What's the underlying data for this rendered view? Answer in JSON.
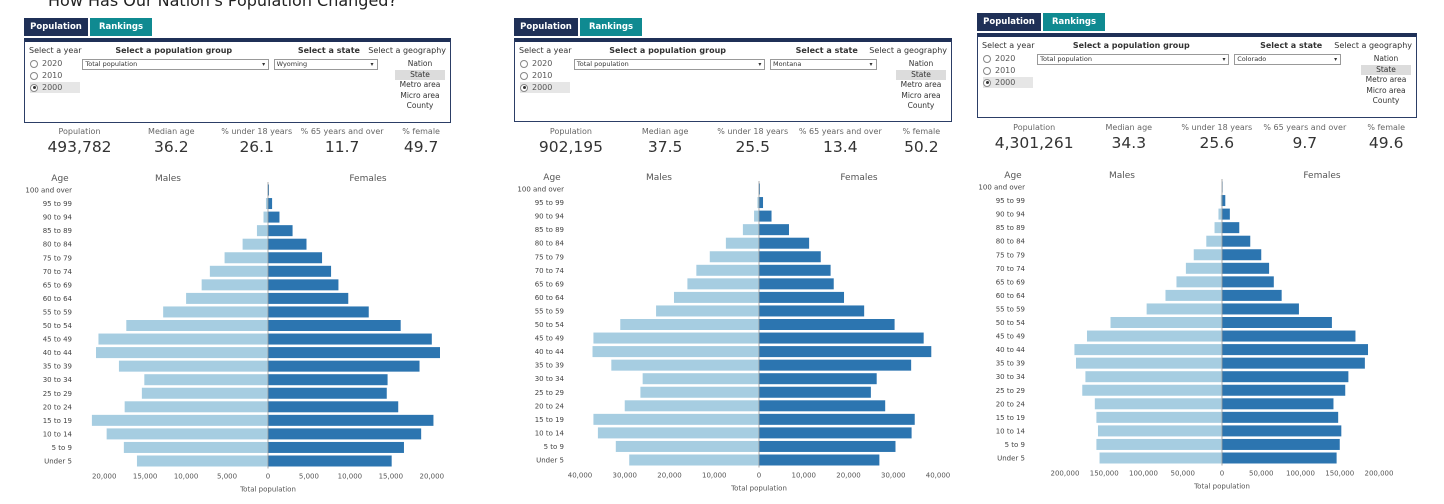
{
  "page_title": "How Has Our Nation's Population Changed?",
  "tabs": [
    "Population",
    "Rankings"
  ],
  "colors": {
    "tab_active": "#1f3057",
    "tab_inactive": "#0f8a91",
    "males": "#a6cde1",
    "females": "#2c75b0",
    "selected_bg": "#e0e0e0"
  },
  "filters": {
    "year_label": "Select a year",
    "group_label": "Select a population group",
    "state_label": "Select a state",
    "geo_label": "Select a geography",
    "years": [
      "2020",
      "2010",
      "2000"
    ],
    "geographies": [
      "Nation",
      "State",
      "Metro area",
      "Micro area",
      "County"
    ]
  },
  "stat_labels": [
    "Population",
    "Median age",
    "% under 18 years",
    "% 65 years and over",
    "% female"
  ],
  "chart_labels": {
    "age": "Age",
    "males": "Males",
    "females": "Females",
    "xlabel": "Total population"
  },
  "panels": [
    {
      "selected_year": "2000",
      "group_value": "Total population",
      "state_value": "Wyoming",
      "selected_geo": "State",
      "stats": [
        "493,782",
        "36.2",
        "26.1",
        "11.7",
        "49.7"
      ]
    },
    {
      "selected_year": "2000",
      "group_value": "Total population",
      "state_value": "Montana",
      "selected_geo": "State",
      "stats": [
        "902,195",
        "37.5",
        "25.5",
        "13.4",
        "50.2"
      ]
    },
    {
      "selected_year": "2000",
      "group_value": "Total population",
      "state_value": "Colorado",
      "selected_geo": "State",
      "stats": [
        "4,301,261",
        "34.3",
        "25.6",
        "9.7",
        "49.6"
      ]
    }
  ],
  "chart_data": [
    {
      "type": "bar",
      "orientation": "horizontal",
      "title": "",
      "categories": [
        "100 and over",
        "95 to 99",
        "90 to 94",
        "85 to 89",
        "80 to 84",
        "75 to 79",
        "70 to 74",
        "65 to 69",
        "60 to 64",
        "55 to 59",
        "50 to 54",
        "45 to 49",
        "40 to 44",
        "35 to 39",
        "30 to 34",
        "25 to 29",
        "20 to 24",
        "15 to 19",
        "10 to 14",
        "5 to 9",
        "Under 5"
      ],
      "series": [
        {
          "name": "Males",
          "values": [
            50,
            250,
            550,
            1350,
            3100,
            5300,
            7100,
            8100,
            10000,
            12800,
            17300,
            20700,
            21000,
            18200,
            15100,
            15400,
            17500,
            21500,
            19700,
            17600,
            16000
          ]
        },
        {
          "name": "Females",
          "values": [
            120,
            500,
            1400,
            3000,
            4700,
            6600,
            7700,
            8600,
            9800,
            12300,
            16200,
            20000,
            21000,
            18500,
            14600,
            14500,
            15900,
            20200,
            18700,
            16600,
            15100
          ]
        }
      ],
      "xticks": [
        -20000,
        -15000,
        -10000,
        -5000,
        0,
        5000,
        10000,
        15000,
        20000
      ],
      "xtick_labels": [
        "20,000",
        "15,000",
        "10,000",
        "5,000",
        "0",
        "5,000",
        "10,000",
        "15,000",
        "20,000"
      ],
      "xlim": [
        -22500,
        22500
      ],
      "xlabel": "Total population",
      "legend": "top"
    },
    {
      "type": "bar",
      "orientation": "horizontal",
      "title": "",
      "categories": [
        "100 and over",
        "95 to 99",
        "90 to 94",
        "85 to 89",
        "80 to 84",
        "75 to 79",
        "70 to 74",
        "65 to 69",
        "60 to 64",
        "55 to 59",
        "50 to 54",
        "45 to 49",
        "40 to 44",
        "35 to 39",
        "30 to 34",
        "25 to 29",
        "20 to 24",
        "15 to 19",
        "10 to 14",
        "5 to 9",
        "Under 5"
      ],
      "series": [
        {
          "name": "Males",
          "values": [
            80,
            350,
            1100,
            3600,
            7400,
            11000,
            14000,
            16000,
            19000,
            23000,
            31000,
            37000,
            37200,
            33000,
            26000,
            26500,
            30000,
            37000,
            36000,
            32000,
            29000
          ]
        },
        {
          "name": "Females",
          "values": [
            200,
            900,
            2800,
            6700,
            11200,
            13800,
            16000,
            16700,
            19000,
            23500,
            30300,
            36800,
            38500,
            34000,
            26300,
            25000,
            28200,
            34800,
            34100,
            30500,
            26900
          ]
        }
      ],
      "xticks": [
        -40000,
        -30000,
        -20000,
        -10000,
        0,
        10000,
        20000,
        30000,
        40000
      ],
      "xtick_labels": [
        "40,000",
        "30,000",
        "20,000",
        "10,000",
        "0",
        "10,000",
        "20,000",
        "30,000",
        "40,000"
      ],
      "xlim": [
        -40000,
        40000
      ],
      "xlabel": "Total population",
      "legend": "top"
    },
    {
      "type": "bar",
      "orientation": "horizontal",
      "title": "",
      "categories": [
        "100 and over",
        "95 to 99",
        "90 to 94",
        "85 to 89",
        "80 to 84",
        "75 to 79",
        "70 to 74",
        "65 to 69",
        "60 to 64",
        "55 to 59",
        "50 to 54",
        "45 to 49",
        "40 to 44",
        "35 to 39",
        "30 to 34",
        "25 to 29",
        "20 to 24",
        "15 to 19",
        "10 to 14",
        "5 to 9",
        "Under 5"
      ],
      "series": [
        {
          "name": "Males",
          "values": [
            200,
            1500,
            4500,
            9500,
            20000,
            36000,
            46000,
            58000,
            72000,
            96000,
            142000,
            172000,
            188000,
            186000,
            174000,
            178000,
            162000,
            160000,
            158000,
            160000,
            156000
          ]
        },
        {
          "name": "Females",
          "values": [
            700,
            4200,
            10000,
            22000,
            36000,
            50000,
            60000,
            66000,
            76000,
            98000,
            140000,
            170000,
            186000,
            182000,
            161000,
            157000,
            142000,
            148000,
            152000,
            150000,
            146000
          ]
        }
      ],
      "xticks": [
        -200000,
        -150000,
        -100000,
        -50000,
        0,
        50000,
        100000,
        150000,
        200000
      ],
      "xtick_labels": [
        "200,000",
        "150,000",
        "100,000",
        "50,000",
        "0",
        "50,000",
        "100,000",
        "150,000",
        "200,000"
      ],
      "xlim": [
        -220000,
        220000
      ],
      "xlabel": "Total population",
      "legend": "top"
    }
  ]
}
